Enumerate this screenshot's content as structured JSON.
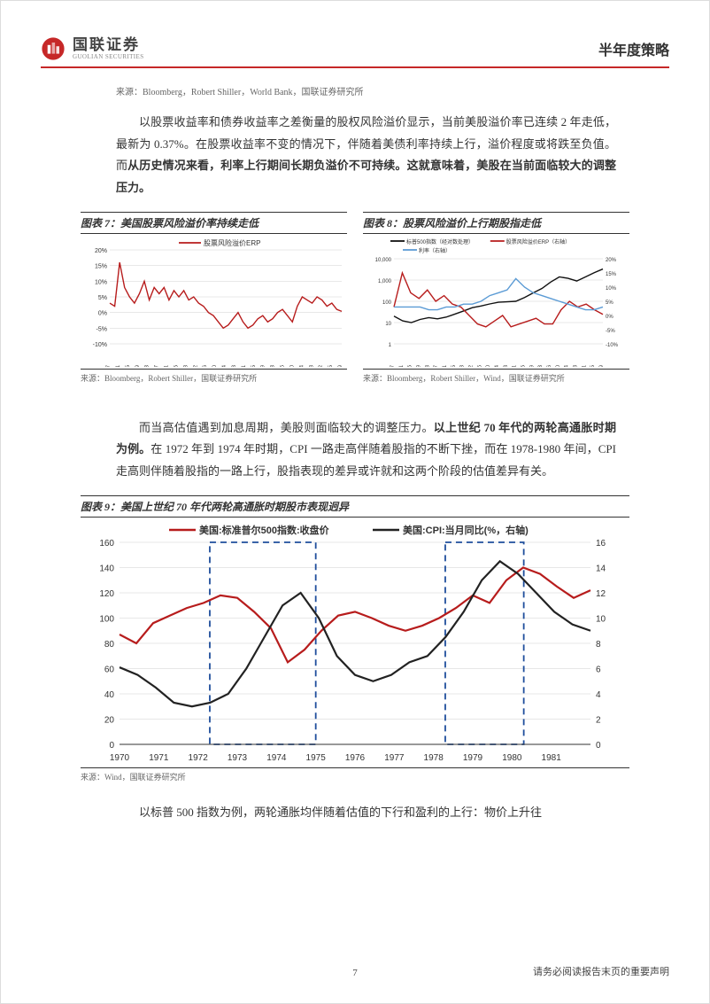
{
  "header": {
    "logo_zh": "国联证券",
    "logo_en": "GUOLIAN SECURITIES",
    "doc_type": "半年度策略",
    "accent_color": "#c62828"
  },
  "source_top": "来源：Bloomberg，Robert Shiller，World Bank，国联证券研究所",
  "para1_a": "以股票收益率和债券收益率之差衡量的股权风险溢价显示，当前美股溢价率已连续 2 年走低，最新为 0.37%。在股票收益率不变的情况下，伴随着美债利率持续上行，溢价程度或将跌至负值。而",
  "para1_b": "从历史情况来看，利率上行期间长期负溢价不可持续。这就意味着，美股在当前面临较大的调整压力。",
  "chart7": {
    "title": "图表 7：美国股票风险溢价率持续走低",
    "legend": "股票风险溢价ERP",
    "source": "来源：Bloomberg，Robert Shiller，国联证券研究所",
    "type": "line",
    "ylim": [
      -10,
      20
    ],
    "ytick_step": 5,
    "y_ticks": [
      "20%",
      "15%",
      "10%",
      "5%",
      "0%",
      "-5%",
      "-10%"
    ],
    "x_ticks": [
      "1927",
      "1931",
      "1935",
      "1939",
      "1943",
      "1947",
      "1951",
      "1955",
      "1958",
      "1962",
      "1966",
      "1970",
      "1974",
      "1978",
      "1981",
      "1985",
      "1989",
      "1993",
      "1996",
      "2000",
      "2004",
      "2008",
      "2012",
      "2015",
      "2019"
    ],
    "line_color": "#b71c1c",
    "grid_color": "#d0d0d0",
    "background_color": "#ffffff",
    "data": [
      3,
      2,
      16,
      8,
      5,
      3,
      6,
      10,
      4,
      8,
      6,
      8,
      4,
      7,
      5,
      7,
      4,
      5,
      3,
      2,
      0,
      -1,
      -3,
      -5,
      -4,
      -2,
      0,
      -3,
      -5,
      -4,
      -2,
      -1,
      -3,
      -2,
      0,
      1,
      -1,
      -3,
      2,
      5,
      4,
      3,
      5,
      4,
      2,
      3,
      1,
      0.37
    ]
  },
  "chart8": {
    "title": "图表 8：股票风险溢价上行期股指走低",
    "legend": [
      "标普500指数（经对数处理）",
      "股票风险溢价ERP（右轴）",
      "利率（右轴）"
    ],
    "source": "来源：Bloomberg，Robert Shiller，Wind，国联证券研究所",
    "type": "line",
    "y_left_ticks": [
      "10,000",
      "1,000",
      "100",
      "10",
      "1"
    ],
    "y_right_ticks": [
      "20%",
      "15%",
      "10%",
      "5%",
      "0%",
      "-5%",
      "-10%"
    ],
    "x_ticks": [
      "1927",
      "1931",
      "1935",
      "1939",
      "1943",
      "1947",
      "1951",
      "1955",
      "1958",
      "1962",
      "1966",
      "1970",
      "1974",
      "1978",
      "1981",
      "1985",
      "1989",
      "1993",
      "1996",
      "2000",
      "2004",
      "2008",
      "2011",
      "2015",
      "2019"
    ],
    "colors": {
      "sp500": "#111111",
      "erp": "#b71c1c",
      "rate": "#5b9bd5"
    },
    "grid_color": "#d0d0d0",
    "background_color": "#ffffff",
    "sp500": [
      20,
      12,
      10,
      14,
      17,
      15,
      18,
      25,
      35,
      50,
      60,
      75,
      90,
      95,
      100,
      150,
      250,
      400,
      800,
      1400,
      1200,
      900,
      1400,
      2200,
      3300
    ],
    "erp": [
      3,
      15,
      8,
      6,
      9,
      5,
      7,
      4,
      3,
      0,
      -3,
      -4,
      -2,
      0,
      -4,
      -3,
      -2,
      -1,
      -3,
      -3,
      2,
      5,
      3,
      4,
      2,
      0.4
    ],
    "rate": [
      3,
      3,
      3,
      3,
      2,
      2,
      3,
      3,
      4,
      4,
      5,
      7,
      8,
      9,
      13,
      10,
      8,
      7,
      6,
      5,
      4,
      3,
      2,
      2,
      3
    ]
  },
  "para2_a": "而当高估值遇到加息周期，美股则面临较大的调整压力。",
  "para2_b": "以上世纪 70 年代的两轮高通胀时期为例。",
  "para2_c": "在 1972 年到 1974 年时期，CPI 一路走高伴随着股指的不断下挫，而在 1978-1980 年间，CPI 走高则伴随着股指的一路上行，股指表现的差异或许就和这两个阶段的估值差异有关。",
  "chart9": {
    "title": "图表 9：美国上世纪 70 年代两轮高通胀时期股市表现迥异",
    "legend": [
      "美国:标准普尔500指数:收盘价",
      "美国:CPI:当月同比(%，右轴)"
    ],
    "source": "来源：Wind，国联证券研究所",
    "type": "line",
    "y_left_ticks": [
      160,
      140,
      120,
      100,
      80,
      60,
      40,
      20,
      0
    ],
    "y_right_ticks": [
      16,
      14,
      12,
      10,
      8,
      6,
      4,
      2,
      0
    ],
    "x_ticks": [
      "1970",
      "1971",
      "1972",
      "1973",
      "1974",
      "1975",
      "1976",
      "1977",
      "1978",
      "1979",
      "1980",
      "1981"
    ],
    "colors": {
      "sp500": "#b71c1c",
      "cpi": "#222222"
    },
    "grid_color": "#d0d0d0",
    "background_color": "#ffffff",
    "highlight_color": "#1f4e9c",
    "highlight_ranges": [
      [
        1972.3,
        1975.0
      ],
      [
        1978.3,
        1980.3
      ]
    ],
    "sp500": [
      87,
      80,
      96,
      102,
      108,
      112,
      118,
      116,
      105,
      92,
      65,
      75,
      90,
      102,
      105,
      100,
      94,
      90,
      94,
      100,
      108,
      118,
      112,
      130,
      140,
      135,
      125,
      116,
      122
    ],
    "cpi": [
      6.1,
      5.5,
      4.5,
      3.3,
      3.0,
      3.3,
      4.0,
      6.0,
      8.5,
      11.0,
      12.0,
      10.0,
      7.0,
      5.5,
      5.0,
      5.5,
      6.5,
      7.0,
      8.5,
      10.5,
      13.0,
      14.5,
      13.5,
      12.0,
      10.5,
      9.5,
      9.0
    ]
  },
  "para3": "以标普 500 指数为例，两轮通胀均伴随着估值的下行和盈利的上行：物价上升往",
  "footer": {
    "page": "7",
    "disclaimer": "请务必阅读报告末页的重要声明"
  }
}
